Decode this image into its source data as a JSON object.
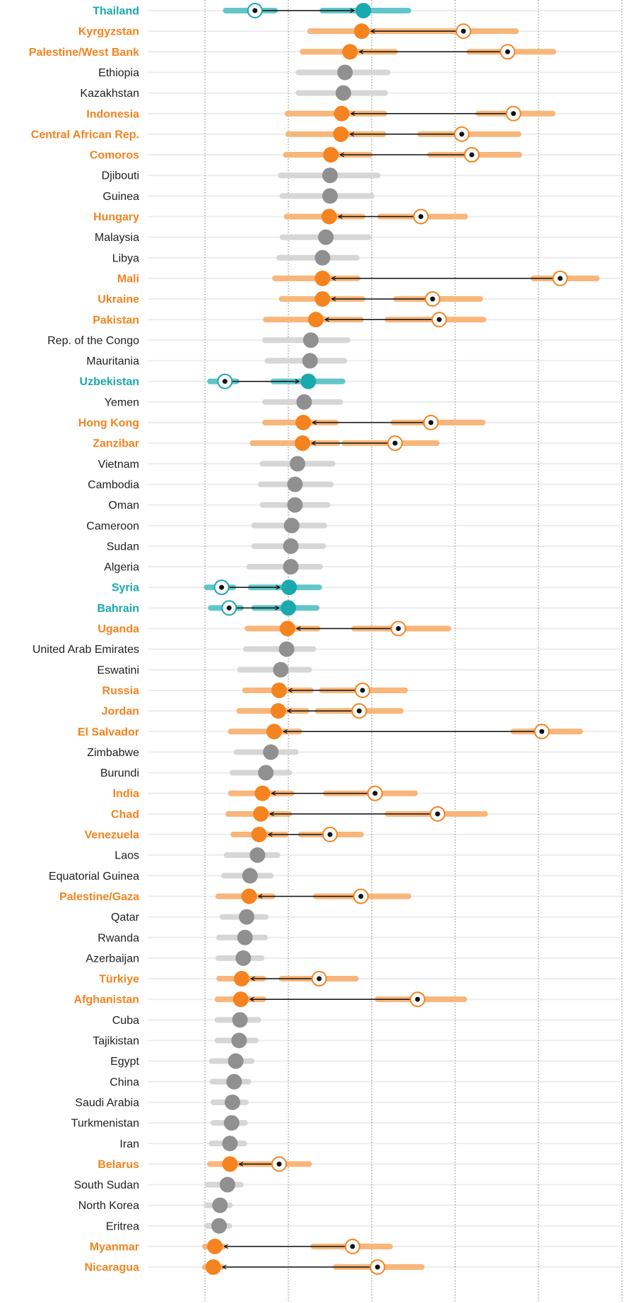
{
  "chart_data": {
    "type": "dumbbell",
    "xlim": [
      0,
      5
    ],
    "gridlines": [
      0,
      1,
      2,
      3,
      4,
      5
    ],
    "colors": {
      "increase": "#f5831f",
      "increase_band": "#f8b67a",
      "decrease": "#1aa9ad",
      "decrease_band": "#62c6c9",
      "unchanged": "#909090",
      "unchanged_band": "#d6d6d6",
      "row_line": "#ececec",
      "grid": "#7a7a7a"
    },
    "rows": [
      {
        "label": "Thailand",
        "status": "down",
        "current": 1.9,
        "band": [
          1.41,
          2.44
        ],
        "previous": 0.6,
        "prev_band": [
          0.25,
          0.84
        ]
      },
      {
        "label": "Kyrgyzstan",
        "status": "up",
        "current": 1.88,
        "band": [
          1.26,
          2.45
        ],
        "previous": 3.1,
        "prev_band": [
          2.45,
          3.73
        ]
      },
      {
        "label": "Palestine/West Bank",
        "status": "up",
        "current": 1.74,
        "band": [
          1.17,
          2.28
        ],
        "previous": 3.63,
        "prev_band": [
          3.17,
          4.18
        ]
      },
      {
        "label": "Ethiopia",
        "status": "none",
        "current": 1.68,
        "band": [
          1.12,
          2.19
        ]
      },
      {
        "label": "Kazakhstan",
        "status": "none",
        "current": 1.66,
        "band": [
          1.12,
          2.16
        ]
      },
      {
        "label": "Indonesia",
        "status": "up",
        "current": 1.64,
        "band": [
          0.99,
          2.15
        ],
        "previous": 3.7,
        "prev_band": [
          3.28,
          4.17
        ]
      },
      {
        "label": "Central African Rep.",
        "status": "up",
        "current": 1.63,
        "band": [
          1.0,
          2.14
        ],
        "previous": 3.08,
        "prev_band": [
          2.58,
          3.76
        ]
      },
      {
        "label": "Comoros",
        "status": "up",
        "current": 1.51,
        "band": [
          0.97,
          1.98
        ],
        "previous": 3.2,
        "prev_band": [
          2.7,
          3.77
        ]
      },
      {
        "label": "Djibouti",
        "status": "none",
        "current": 1.5,
        "band": [
          0.91,
          2.07
        ]
      },
      {
        "label": "Guinea",
        "status": "none",
        "current": 1.5,
        "band": [
          0.93,
          2.0
        ]
      },
      {
        "label": "Hungary",
        "status": "up",
        "current": 1.49,
        "band": [
          0.98,
          1.89
        ],
        "previous": 2.59,
        "prev_band": [
          2.1,
          3.12
        ]
      },
      {
        "label": "Malaysia",
        "status": "none",
        "current": 1.45,
        "band": [
          0.93,
          1.96
        ]
      },
      {
        "label": "Libya",
        "status": "none",
        "current": 1.41,
        "band": [
          0.89,
          1.82
        ]
      },
      {
        "label": "Mali",
        "status": "up",
        "current": 1.41,
        "band": [
          0.84,
          1.83
        ],
        "previous": 4.26,
        "prev_band": [
          3.94,
          4.7
        ]
      },
      {
        "label": "Ukraine",
        "status": "up",
        "current": 1.41,
        "band": [
          0.92,
          1.89
        ],
        "previous": 2.73,
        "prev_band": [
          2.29,
          3.3
        ]
      },
      {
        "label": "Pakistan",
        "status": "up",
        "current": 1.33,
        "band": [
          0.73,
          1.87
        ],
        "previous": 2.81,
        "prev_band": [
          2.19,
          3.34
        ]
      },
      {
        "label": "Rep. of the Congo",
        "status": "none",
        "current": 1.27,
        "band": [
          0.72,
          1.71
        ]
      },
      {
        "label": "Mauritania",
        "status": "none",
        "current": 1.26,
        "band": [
          0.75,
          1.67
        ]
      },
      {
        "label": "Uzbekistan",
        "status": "down",
        "current": 1.24,
        "band": [
          0.82,
          1.65
        ],
        "previous": 0.24,
        "prev_band": [
          0.06,
          0.38
        ]
      },
      {
        "label": "Yemen",
        "status": "none",
        "current": 1.19,
        "band": [
          0.72,
          1.62
        ]
      },
      {
        "label": "Hong Kong",
        "status": "up",
        "current": 1.18,
        "band": [
          0.72,
          1.57
        ],
        "previous": 2.71,
        "prev_band": [
          2.26,
          3.33
        ]
      },
      {
        "label": "Zanzibar",
        "status": "up",
        "current": 1.17,
        "band": [
          0.57,
          1.59
        ],
        "previous": 2.28,
        "prev_band": [
          1.67,
          2.78
        ]
      },
      {
        "label": "Vietnam",
        "status": "none",
        "current": 1.11,
        "band": [
          0.69,
          1.53
        ]
      },
      {
        "label": "Cambodia",
        "status": "none",
        "current": 1.08,
        "band": [
          0.67,
          1.51
        ]
      },
      {
        "label": "Oman",
        "status": "none",
        "current": 1.08,
        "band": [
          0.69,
          1.47
        ]
      },
      {
        "label": "Cameroon",
        "status": "none",
        "current": 1.04,
        "band": [
          0.59,
          1.43
        ]
      },
      {
        "label": "Sudan",
        "status": "none",
        "current": 1.03,
        "band": [
          0.59,
          1.42
        ]
      },
      {
        "label": "Algeria",
        "status": "none",
        "current": 1.03,
        "band": [
          0.53,
          1.38
        ]
      },
      {
        "label": "Syria",
        "status": "down",
        "current": 1.01,
        "band": [
          0.55,
          1.37
        ],
        "previous": 0.2,
        "prev_band": [
          0.02,
          0.34
        ]
      },
      {
        "label": "Bahrain",
        "status": "down",
        "current": 1.0,
        "band": [
          0.59,
          1.34
        ],
        "previous": 0.29,
        "prev_band": [
          0.07,
          0.43
        ]
      },
      {
        "label": "Uganda",
        "status": "up",
        "current": 0.99,
        "band": [
          0.51,
          1.35
        ],
        "previous": 2.32,
        "prev_band": [
          1.79,
          2.92
        ]
      },
      {
        "label": "United Arab Emirates",
        "status": "none",
        "current": 0.98,
        "band": [
          0.49,
          1.3
        ]
      },
      {
        "label": "Eswatini",
        "status": "none",
        "current": 0.91,
        "band": [
          0.42,
          1.25
        ]
      },
      {
        "label": "Russia",
        "status": "up",
        "current": 0.89,
        "band": [
          0.48,
          1.27
        ],
        "previous": 1.89,
        "prev_band": [
          1.4,
          2.4
        ]
      },
      {
        "label": "Jordan",
        "status": "up",
        "current": 0.88,
        "band": [
          0.41,
          1.22
        ],
        "previous": 1.85,
        "prev_band": [
          1.35,
          2.35
        ]
      },
      {
        "label": "El Salvador",
        "status": "up",
        "current": 0.83,
        "band": [
          0.31,
          1.13
        ],
        "previous": 4.04,
        "prev_band": [
          3.7,
          4.5
        ]
      },
      {
        "label": "Zimbabwe",
        "status": "none",
        "current": 0.79,
        "band": [
          0.38,
          1.09
        ]
      },
      {
        "label": "Burundi",
        "status": "none",
        "current": 0.73,
        "band": [
          0.33,
          1.01
        ]
      },
      {
        "label": "India",
        "status": "up",
        "current": 0.69,
        "band": [
          0.31,
          1.04
        ],
        "previous": 2.04,
        "prev_band": [
          1.45,
          2.52
        ]
      },
      {
        "label": "Chad",
        "status": "up",
        "current": 0.67,
        "band": [
          0.28,
          1.01
        ],
        "previous": 2.79,
        "prev_band": [
          2.19,
          3.36
        ]
      },
      {
        "label": "Venezuela",
        "status": "up",
        "current": 0.65,
        "band": [
          0.34,
          0.97
        ],
        "previous": 1.5,
        "prev_band": [
          1.15,
          1.87
        ]
      },
      {
        "label": "Laos",
        "status": "none",
        "current": 0.63,
        "band": [
          0.26,
          0.87
        ]
      },
      {
        "label": "Equatorial Guinea",
        "status": "none",
        "current": 0.54,
        "band": [
          0.23,
          0.79
        ]
      },
      {
        "label": "Palestine/Gaza",
        "status": "up",
        "current": 0.53,
        "band": [
          0.16,
          0.81
        ],
        "previous": 1.87,
        "prev_band": [
          1.33,
          2.44
        ]
      },
      {
        "label": "Qatar",
        "status": "none",
        "current": 0.5,
        "band": [
          0.21,
          0.73
        ]
      },
      {
        "label": "Rwanda",
        "status": "none",
        "current": 0.48,
        "band": [
          0.17,
          0.72
        ]
      },
      {
        "label": "Azerbaijan",
        "status": "none",
        "current": 0.46,
        "band": [
          0.16,
          0.68
        ]
      },
      {
        "label": "Türkiye",
        "status": "up",
        "current": 0.44,
        "band": [
          0.17,
          0.7
        ],
        "previous": 1.37,
        "prev_band": [
          0.92,
          1.81
        ]
      },
      {
        "label": "Afghanistan",
        "status": "up",
        "current": 0.43,
        "band": [
          0.15,
          0.7
        ],
        "previous": 2.55,
        "prev_band": [
          2.07,
          3.11
        ]
      },
      {
        "label": "Cuba",
        "status": "none",
        "current": 0.42,
        "band": [
          0.15,
          0.64
        ]
      },
      {
        "label": "Tajikistan",
        "status": "none",
        "current": 0.41,
        "band": [
          0.15,
          0.61
        ]
      },
      {
        "label": "Egypt",
        "status": "none",
        "current": 0.37,
        "band": [
          0.08,
          0.56
        ]
      },
      {
        "label": "China",
        "status": "none",
        "current": 0.35,
        "band": [
          0.09,
          0.52
        ]
      },
      {
        "label": "Saudi Arabia",
        "status": "none",
        "current": 0.33,
        "band": [
          0.1,
          0.49
        ]
      },
      {
        "label": "Turkmenistan",
        "status": "none",
        "current": 0.32,
        "band": [
          0.1,
          0.48
        ]
      },
      {
        "label": "Iran",
        "status": "none",
        "current": 0.3,
        "band": [
          0.08,
          0.47
        ]
      },
      {
        "label": "Belarus",
        "status": "up",
        "current": 0.3,
        "band": [
          0.06,
          0.5
        ],
        "previous": 0.89,
        "prev_band": [
          0.5,
          1.25
        ]
      },
      {
        "label": "South Sudan",
        "status": "none",
        "current": 0.27,
        "band": [
          0.03,
          0.43
        ]
      },
      {
        "label": "North Korea",
        "status": "none",
        "current": 0.18,
        "band": [
          0.02,
          0.3
        ]
      },
      {
        "label": "Eritrea",
        "status": "none",
        "current": 0.17,
        "band": [
          0.02,
          0.29
        ]
      },
      {
        "label": "Myanmar",
        "status": "up",
        "current": 0.12,
        "band": [
          0.0,
          0.23
        ],
        "previous": 1.77,
        "prev_band": [
          1.3,
          2.22
        ]
      },
      {
        "label": "Nicaragua",
        "status": "up",
        "current": 0.1,
        "band": [
          0.0,
          0.2
        ],
        "previous": 2.07,
        "prev_band": [
          1.57,
          2.6
        ]
      }
    ]
  }
}
